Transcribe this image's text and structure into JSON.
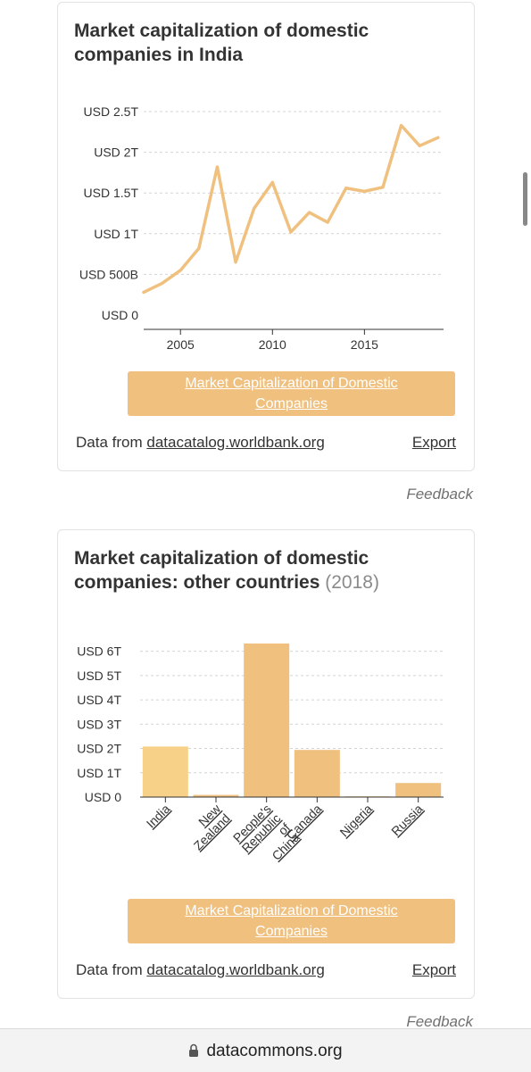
{
  "colors": {
    "series": "#f0c07f",
    "bar_india": "#f7d188",
    "grid": "#d4d4d4",
    "axis": "#333333"
  },
  "card1": {
    "title": "Market capitalization of domestic companies in India",
    "legend_label": "Market Capitalization of Domestic Companies",
    "source_prefix": "Data from ",
    "source_link": "datacatalog.worldbank.org",
    "export_label": "Export",
    "feedback_label": "Feedback"
  },
  "card2": {
    "title": "Market capitalization of domestic companies: other countries",
    "year": "(2018)",
    "legend_label": "Market Capitalization of Domestic Companies",
    "source_prefix": "Data from ",
    "source_link": "datacatalog.worldbank.org",
    "export_label": "Export",
    "feedback_label": "Feedback"
  },
  "url_bar": {
    "url": "datacommons.org",
    "icon": "lock-icon"
  },
  "chart_data": [
    {
      "type": "line",
      "title": "Market capitalization of domestic companies in India",
      "x": [
        2003,
        2004,
        2005,
        2006,
        2007,
        2008,
        2009,
        2010,
        2011,
        2012,
        2013,
        2014,
        2015,
        2016,
        2017,
        2018,
        2019
      ],
      "series": [
        {
          "name": "Market Capitalization of Domestic Companies",
          "values": [
            0.28,
            0.39,
            0.55,
            0.82,
            1.82,
            0.65,
            1.31,
            1.63,
            1.02,
            1.26,
            1.14,
            1.56,
            1.52,
            1.57,
            2.33,
            2.08,
            2.18
          ]
        }
      ],
      "ylim": [
        0,
        2.5
      ],
      "yticks": [
        {
          "v": 0,
          "label": "USD 0"
        },
        {
          "v": 0.5,
          "label": "USD 500B"
        },
        {
          "v": 1,
          "label": "USD 1T"
        },
        {
          "v": 1.5,
          "label": "USD 1.5T"
        },
        {
          "v": 2,
          "label": "USD 2T"
        },
        {
          "v": 2.5,
          "label": "USD 2.5T"
        }
      ],
      "xticks": [
        2005,
        2010,
        2015
      ],
      "grid": true
    },
    {
      "type": "bar",
      "title": "Market capitalization of domestic companies: other countries",
      "categories": [
        "India",
        "New Zealand",
        "People's Republic of China",
        "Canada",
        "Nigeria",
        "Russia"
      ],
      "category_lines": [
        [
          "India"
        ],
        [
          "New",
          "Zealand"
        ],
        [
          "People's",
          "Republic",
          "of",
          "China"
        ],
        [
          "Canada"
        ],
        [
          "Nigeria"
        ],
        [
          "Russia"
        ]
      ],
      "values": [
        2.08,
        0.09,
        6.32,
        1.94,
        0.03,
        0.58
      ],
      "ylim": [
        0,
        6.5
      ],
      "yticks": [
        {
          "v": 0,
          "label": "USD 0"
        },
        {
          "v": 1,
          "label": "USD 1T"
        },
        {
          "v": 2,
          "label": "USD 2T"
        },
        {
          "v": 3,
          "label": "USD 3T"
        },
        {
          "v": 4,
          "label": "USD 4T"
        },
        {
          "v": 5,
          "label": "USD 5T"
        },
        {
          "v": 6,
          "label": "USD 6T"
        }
      ],
      "grid": true
    }
  ]
}
